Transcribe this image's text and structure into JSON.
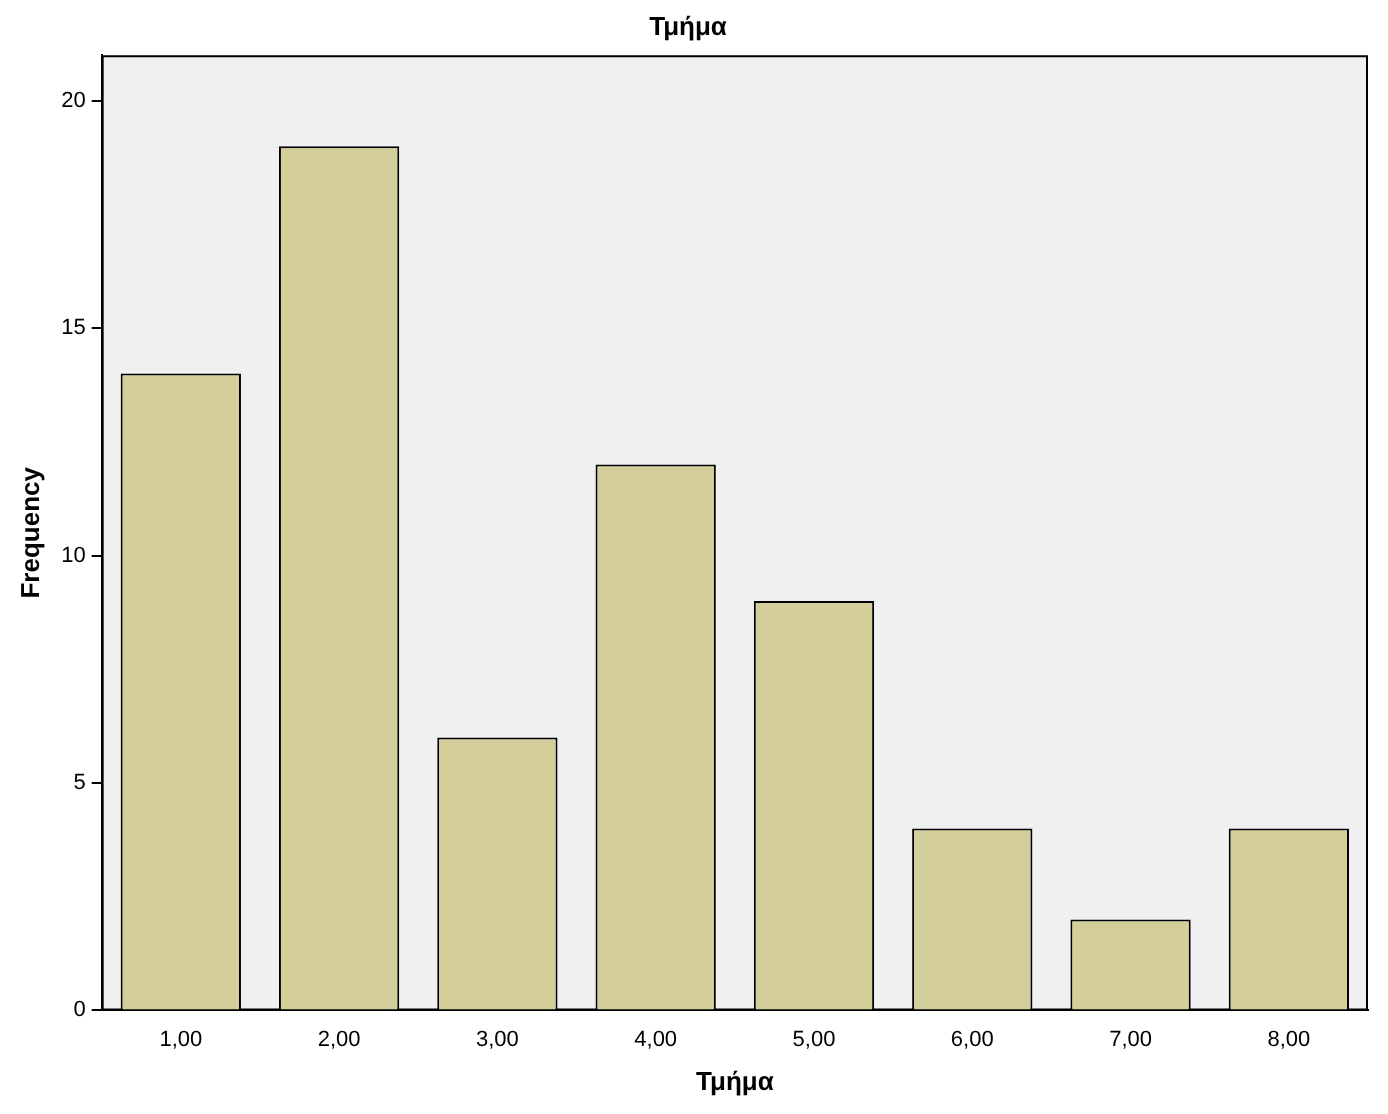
{
  "chart_data": {
    "type": "bar",
    "title": "Τμήμα",
    "xlabel": "Τμήμα",
    "ylabel": "Frequency",
    "categories": [
      "1,00",
      "2,00",
      "3,00",
      "4,00",
      "5,00",
      "6,00",
      "7,00",
      "8,00"
    ],
    "values": [
      14,
      19,
      6,
      12,
      9,
      4,
      2,
      4
    ],
    "color": "#d3ce9a",
    "ylim": [
      0,
      21
    ],
    "yticks": [
      0,
      5,
      10,
      15,
      20
    ],
    "grid": false,
    "legend": false
  }
}
